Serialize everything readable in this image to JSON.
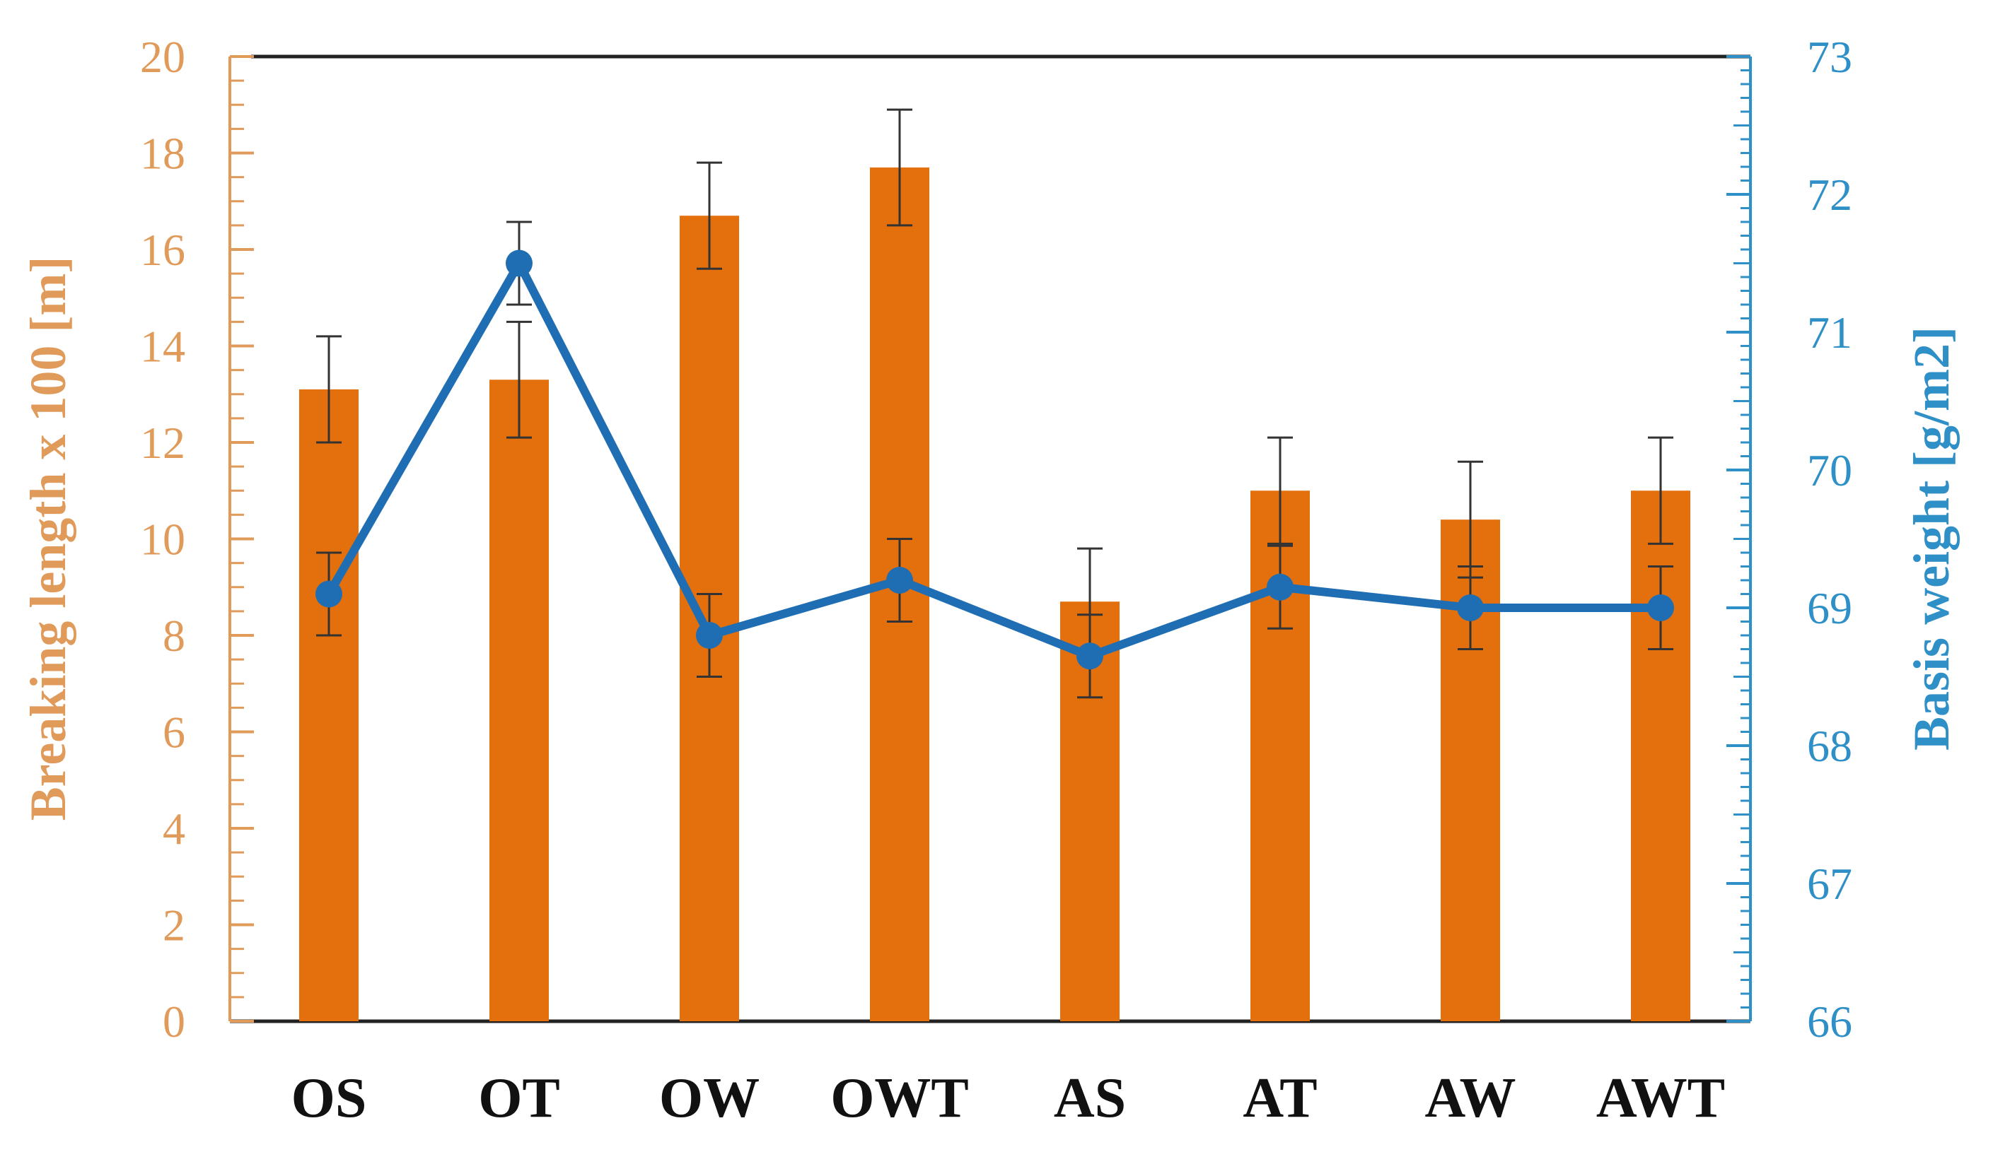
{
  "chart_data": {
    "type": "bar",
    "categories": [
      "OS",
      "OT",
      "OW",
      "OWT",
      "AS",
      "AT",
      "AW",
      "AWT"
    ],
    "series": [
      {
        "name": "Breaking length x 100 [m]",
        "kind": "bar",
        "axis": "left",
        "values": [
          13.1,
          13.3,
          16.7,
          17.7,
          8.7,
          11.0,
          10.4,
          11.0
        ],
        "error": [
          1.1,
          1.2,
          1.1,
          1.2,
          1.1,
          1.1,
          1.2,
          1.1
        ]
      },
      {
        "name": "Basis weight [g/m2]",
        "kind": "line",
        "axis": "right",
        "values": [
          69.1,
          71.5,
          68.8,
          69.2,
          68.65,
          69.15,
          69.0,
          69.0
        ],
        "error": [
          0.3,
          0.3,
          0.3,
          0.3,
          0.3,
          0.3,
          0.3,
          0.3
        ]
      }
    ],
    "y_left": {
      "label": "Breaking length x 100 [m]",
      "lim": [
        0,
        20
      ],
      "ticks": [
        "0",
        "2",
        "4",
        "6",
        "8",
        "10",
        "12",
        "14",
        "16",
        "18",
        "20"
      ]
    },
    "y_right": {
      "label": "Basis weight [g/m2]",
      "lim": [
        66,
        73
      ],
      "ticks": [
        "66",
        "67",
        "68",
        "69",
        "70",
        "71",
        "72",
        "73"
      ]
    },
    "grid": false,
    "legend": "none",
    "colors": {
      "bar": "#e3700d",
      "line": "#1f6eb4",
      "left_axis": "#e09a5a",
      "right_axis": "#2f8fc7",
      "error_bar": "#333333"
    }
  }
}
